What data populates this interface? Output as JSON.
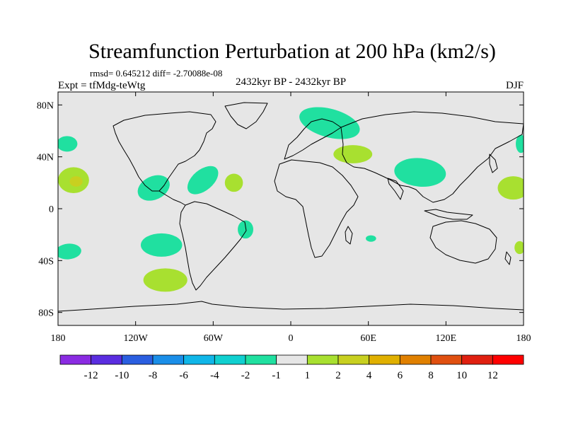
{
  "chart_data": {
    "type": "heatmap",
    "title": "Streamfunction Perturbation at 200 hPa (km2/s)",
    "subtitle_stats": "rmsd= 0.645212 diff= -2.70088e-08",
    "left_label": "Expt = tfMdg-teWtg",
    "center_label": "2432kyr BP - 2432kyr BP",
    "right_label": "DJF",
    "x_ticks": [
      {
        "value": -180,
        "label": "180"
      },
      {
        "value": -120,
        "label": "120W"
      },
      {
        "value": -60,
        "label": "60W"
      },
      {
        "value": 0,
        "label": "0"
      },
      {
        "value": 60,
        "label": "60E"
      },
      {
        "value": 120,
        "label": "120E"
      },
      {
        "value": 180,
        "label": "180"
      }
    ],
    "y_ticks": [
      {
        "value": 80,
        "label": "80N"
      },
      {
        "value": 40,
        "label": "40N"
      },
      {
        "value": 0,
        "label": "0"
      },
      {
        "value": -40,
        "label": "40S"
      },
      {
        "value": -80,
        "label": "80S"
      }
    ],
    "xlim": [
      -180,
      180
    ],
    "ylim": [
      -90,
      90
    ],
    "colorbar": {
      "colors": [
        "#8a2be2",
        "#5a2de0",
        "#2a5ee0",
        "#1a8ee8",
        "#10b6e8",
        "#10d0d0",
        "#20e0a0",
        "#e6e6e6",
        "#a8e030",
        "#c8d020",
        "#e0b000",
        "#e08000",
        "#e05010",
        "#e02010",
        "#ff0000"
      ],
      "labels": [
        "-12",
        "-10",
        "-8",
        "-6",
        "-4",
        "-2",
        "-1",
        "1",
        "2",
        "4",
        "6",
        "8",
        "10",
        "12"
      ]
    },
    "anomalies": [
      {
        "id": "n-atlantic-neg",
        "lon": -68,
        "lat": 22,
        "rlon": 14,
        "rlat": 8,
        "rot": -40,
        "color": "#20e0a0"
      },
      {
        "id": "caribbean-neg",
        "lon": -106,
        "lat": 16,
        "rlon": 13,
        "rlat": 9,
        "rot": -25,
        "color": "#20e0a0"
      },
      {
        "id": "n-pacific-neg",
        "lon": -173,
        "lat": 50,
        "rlon": 8,
        "rlat": 6,
        "rot": 0,
        "color": "#20e0a0"
      },
      {
        "id": "atlantic-pos",
        "lon": -44,
        "lat": 20,
        "rlon": 7,
        "rlat": 7,
        "rot": 0,
        "color": "#a8e030"
      },
      {
        "id": "europe-neg",
        "lon": 30,
        "lat": 66,
        "rlon": 24,
        "rlat": 11,
        "rot": 15,
        "color": "#20e0a0"
      },
      {
        "id": "asia-pos",
        "lon": 48,
        "lat": 42,
        "rlon": 15,
        "rlat": 7,
        "rot": 0,
        "color": "#a8e030"
      },
      {
        "id": "s-asia-neg",
        "lon": 100,
        "lat": 28,
        "rlon": 20,
        "rlat": 11,
        "rot": 5,
        "color": "#20e0a0"
      },
      {
        "id": "c-pacific-pos",
        "lon": -168,
        "lat": 22,
        "rlon": 12,
        "rlat": 10,
        "rot": 0,
        "color": "#a8e030"
      },
      {
        "id": "c-pacific-core",
        "lon": -166,
        "lat": 21,
        "rlon": 5,
        "rlat": 4,
        "rot": 0,
        "color": "#c8d020"
      },
      {
        "id": "w-pacific-pos",
        "lon": 172,
        "lat": 16,
        "rlon": 12,
        "rlat": 9,
        "rot": 0,
        "color": "#a8e030"
      },
      {
        "id": "nw-pacific-neg",
        "lon": 178,
        "lat": 50,
        "rlon": 4,
        "rlat": 7,
        "rot": 0,
        "color": "#20e0a0"
      },
      {
        "id": "s-pacific-neg",
        "lon": -100,
        "lat": -28,
        "rlon": 16,
        "rlat": 9,
        "rot": 0,
        "color": "#20e0a0"
      },
      {
        "id": "brazil-neg",
        "lon": -35,
        "lat": -16,
        "rlon": 6,
        "rlat": 7,
        "rot": 0,
        "color": "#20e0a0"
      },
      {
        "id": "sw-pacific-neg",
        "lon": -172,
        "lat": -33,
        "rlon": 10,
        "rlat": 6,
        "rot": -5,
        "color": "#20e0a0"
      },
      {
        "id": "se-pacific-pos",
        "lon": -97,
        "lat": -55,
        "rlon": 17,
        "rlat": 9,
        "rot": 0,
        "color": "#a8e030"
      },
      {
        "id": "indian-neg",
        "lon": 62,
        "lat": -23,
        "rlon": 4,
        "rlat": 2.5,
        "rot": 0,
        "color": "#20e0a0"
      },
      {
        "id": "tasman-pos",
        "lon": 177,
        "lat": -30,
        "rlon": 4,
        "rlat": 5,
        "rot": 0,
        "color": "#a8e030"
      }
    ]
  }
}
